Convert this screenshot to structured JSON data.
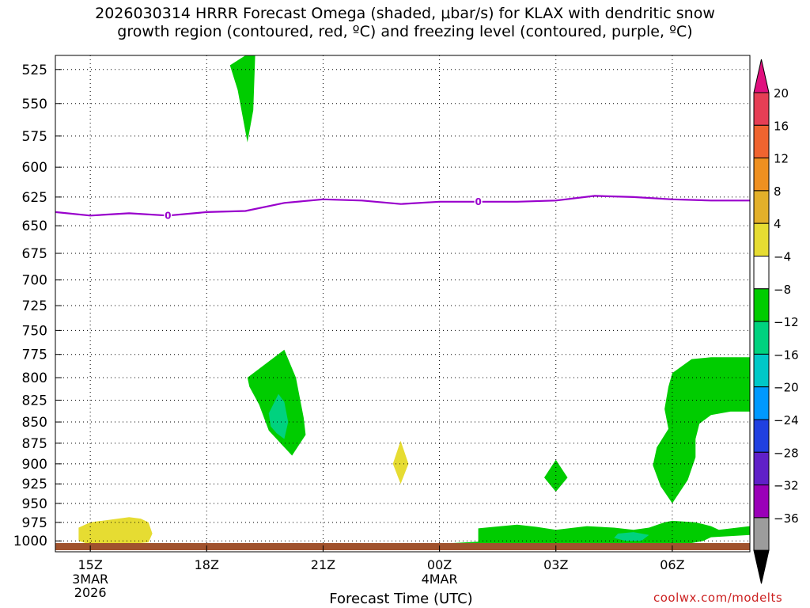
{
  "title": {
    "line1": "2026030314 HRRR Forecast Omega (shaded, μbar/s) for KLAX with dendritic snow",
    "line2": "growth region (contoured, red, ºC) and freezing level (contoured, purple, ºC)"
  },
  "credit": "coolwx.com/modelts",
  "chart_data": {
    "type": "time-height cross section",
    "xlabel": "Forecast Time (UTC)",
    "x_ticks": [
      {
        "hour": 15,
        "label": "15Z",
        "sub": [
          "3MAR",
          "2026"
        ]
      },
      {
        "hour": 18,
        "label": "18Z",
        "sub": []
      },
      {
        "hour": 21,
        "label": "21Z",
        "sub": []
      },
      {
        "hour": 24,
        "label": "00Z",
        "sub": [
          "4MAR"
        ]
      },
      {
        "hour": 27,
        "label": "03Z",
        "sub": []
      },
      {
        "hour": 30,
        "label": "06Z",
        "sub": []
      }
    ],
    "xlim": [
      14.1,
      32.0
    ],
    "y_ticks": [
      525,
      550,
      575,
      600,
      625,
      650,
      675,
      700,
      725,
      750,
      775,
      800,
      825,
      850,
      875,
      900,
      925,
      950,
      975,
      1000
    ],
    "ylim_hPa": [
      515,
      1015
    ],
    "y_scale": "log-pressure",
    "grid": "dotted",
    "freezing_level": {
      "label": "0",
      "color": "#9900cc",
      "points": [
        [
          14.1,
          638
        ],
        [
          15.0,
          641
        ],
        [
          16.0,
          639
        ],
        [
          17.0,
          641
        ],
        [
          18.0,
          638
        ],
        [
          19.0,
          637
        ],
        [
          20.0,
          630
        ],
        [
          21.0,
          627
        ],
        [
          22.0,
          628
        ],
        [
          23.0,
          631
        ],
        [
          24.0,
          629
        ],
        [
          25.0,
          629
        ],
        [
          26.0,
          629
        ],
        [
          27.0,
          628
        ],
        [
          28.0,
          624
        ],
        [
          29.0,
          625
        ],
        [
          30.0,
          627
        ],
        [
          31.0,
          628
        ],
        [
          32.0,
          628
        ]
      ],
      "label_positions": [
        [
          17.0,
          641
        ],
        [
          25.0,
          629
        ]
      ]
    },
    "omega_regions": [
      {
        "name": "upper-green",
        "fill": "#00cc00",
        "points": [
          [
            19.0,
            515
          ],
          [
            19.25,
            515
          ],
          [
            19.2,
            555
          ],
          [
            19.05,
            580
          ],
          [
            18.8,
            540
          ],
          [
            18.6,
            522
          ]
        ]
      },
      {
        "name": "mid-green",
        "fill": "#00cc00",
        "points": [
          [
            19.05,
            800
          ],
          [
            20.0,
            770
          ],
          [
            20.3,
            800
          ],
          [
            20.5,
            845
          ],
          [
            20.55,
            865
          ],
          [
            20.2,
            890
          ],
          [
            19.6,
            860
          ],
          [
            19.35,
            830
          ],
          [
            19.1,
            810
          ]
        ]
      },
      {
        "name": "mid-teal",
        "fill": "#00d27f",
        "points": [
          [
            19.6,
            840
          ],
          [
            19.85,
            818
          ],
          [
            20.0,
            827
          ],
          [
            20.1,
            850
          ],
          [
            20.0,
            870
          ],
          [
            19.8,
            863
          ],
          [
            19.65,
            855
          ]
        ]
      },
      {
        "name": "yellow-small",
        "fill": "#e6dc32",
        "points": [
          [
            23.0,
            872
          ],
          [
            23.2,
            900
          ],
          [
            23.0,
            925
          ],
          [
            22.8,
            900
          ]
        ]
      },
      {
        "name": "yellow-surface",
        "fill": "#e6dc32",
        "points": [
          [
            15.0,
            975
          ],
          [
            16.0,
            968
          ],
          [
            16.3,
            970
          ],
          [
            16.5,
            975
          ],
          [
            16.6,
            990
          ],
          [
            16.5,
            1002
          ],
          [
            15.8,
            1005
          ],
          [
            15.0,
            1005
          ],
          [
            14.7,
            1000
          ],
          [
            14.7,
            982
          ]
        ]
      },
      {
        "name": "green-surface-thin",
        "fill": "#00cc00",
        "points": [
          [
            24.0,
            1004
          ],
          [
            25.0,
            1001
          ],
          [
            26.5,
            1001
          ],
          [
            26.5,
            1003
          ],
          [
            24.0,
            1005
          ]
        ]
      },
      {
        "name": "green-surface",
        "fill": "#00cc00",
        "points": [
          [
            25.0,
            983
          ],
          [
            26.0,
            978
          ],
          [
            26.5,
            981
          ],
          [
            27.0,
            985
          ],
          [
            27.8,
            980
          ],
          [
            28.5,
            982
          ],
          [
            29.0,
            985
          ],
          [
            29.4,
            982
          ],
          [
            29.8,
            975
          ],
          [
            30.0,
            973
          ],
          [
            30.6,
            975
          ],
          [
            31.0,
            980
          ],
          [
            31.2,
            985
          ],
          [
            32.0,
            980
          ],
          [
            32.0,
            992
          ],
          [
            31.0,
            995
          ],
          [
            30.8,
            1000
          ],
          [
            30.5,
            1003
          ],
          [
            30.0,
            1006
          ],
          [
            29.0,
            1006
          ],
          [
            27.0,
            1006
          ],
          [
            25.5,
            1006
          ],
          [
            25.0,
            1005
          ]
        ]
      },
      {
        "name": "teal-surface",
        "fill": "#00d27f",
        "points": [
          [
            28.6,
            990
          ],
          [
            29.0,
            988
          ],
          [
            29.4,
            992
          ],
          [
            29.2,
            1000
          ],
          [
            28.8,
            1000
          ],
          [
            28.5,
            996
          ]
        ]
      },
      {
        "name": "green-small",
        "fill": "#00cc00",
        "points": [
          [
            27.0,
            895
          ],
          [
            27.3,
            917
          ],
          [
            27.0,
            935
          ],
          [
            26.7,
            917
          ]
        ]
      },
      {
        "name": "green-right",
        "fill": "#00cc00",
        "points": [
          [
            30.0,
            795
          ],
          [
            30.5,
            780
          ],
          [
            31.0,
            778
          ],
          [
            32.0,
            778
          ],
          [
            32.0,
            838
          ],
          [
            31.5,
            838
          ],
          [
            31.0,
            842
          ],
          [
            30.7,
            852
          ],
          [
            30.6,
            870
          ],
          [
            30.6,
            892
          ],
          [
            30.4,
            920
          ],
          [
            30.0,
            950
          ],
          [
            29.7,
            928
          ],
          [
            29.5,
            902
          ],
          [
            29.6,
            880
          ],
          [
            29.9,
            858
          ],
          [
            29.8,
            835
          ],
          [
            29.9,
            810
          ]
        ]
      }
    ],
    "colorbar": {
      "labels": [
        "20",
        "16",
        "12",
        "8",
        "4",
        "−4",
        "−8",
        "−12",
        "−16",
        "−20",
        "−24",
        "−28",
        "−32",
        "−36"
      ],
      "bands": [
        "#e63e55",
        "#f0642f",
        "#ef9020",
        "#e3b02a",
        "#e6dc32",
        "#ffffff",
        "#00cc00",
        "#00d27f",
        "#00c8c8",
        "#0099ff",
        "#2040e0",
        "#6020c8",
        "#9a00b8",
        "#9c9c9c"
      ],
      "top_arrow": "#e0107e",
      "bottom_arrow": "#000000"
    },
    "terrain_color": "#a0522d"
  }
}
